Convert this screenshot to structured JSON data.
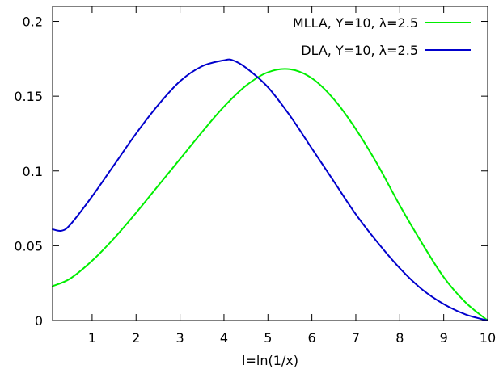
{
  "chart_data": {
    "type": "line",
    "title": "",
    "xlabel": "l=ln(1/x)",
    "ylabel": "",
    "xlim": [
      0.1,
      10
    ],
    "ylim": [
      0,
      0.21
    ],
    "xticks": [
      1,
      2,
      3,
      4,
      5,
      6,
      7,
      8,
      9,
      10
    ],
    "xtick_labels": [
      "1",
      "2",
      "3",
      "4",
      "5",
      "6",
      "7",
      "8",
      "9",
      "10"
    ],
    "yticks": [
      0,
      0.05,
      0.1,
      0.15,
      0.2
    ],
    "ytick_labels": [
      "0",
      "0.05",
      "0.1",
      "0.15",
      "0.2"
    ],
    "grid": false,
    "legend_position": "top-right",
    "series": [
      {
        "name": "MLLA, Y=10, λ=2.5",
        "color": "#00ee00",
        "x": [
          0.1,
          0.5,
          1.0,
          1.5,
          2.0,
          2.5,
          3.0,
          3.5,
          4.0,
          4.5,
          5.0,
          5.5,
          6.0,
          6.5,
          7.0,
          7.5,
          8.0,
          8.5,
          9.0,
          9.5,
          10.0
        ],
        "y": [
          0.023,
          0.028,
          0.04,
          0.055,
          0.072,
          0.09,
          0.108,
          0.126,
          0.143,
          0.157,
          0.166,
          0.168,
          0.162,
          0.148,
          0.128,
          0.104,
          0.077,
          0.052,
          0.029,
          0.012,
          0.0
        ]
      },
      {
        "name": "DLA, Y=10, λ=2.5",
        "color": "#0000cc",
        "x": [
          0.1,
          0.3,
          0.5,
          1.0,
          1.5,
          2.0,
          2.5,
          3.0,
          3.5,
          4.0,
          4.2,
          4.5,
          5.0,
          5.5,
          6.0,
          6.5,
          7.0,
          7.5,
          8.0,
          8.5,
          9.0,
          9.5,
          10.0
        ],
        "y": [
          0.061,
          0.06,
          0.064,
          0.083,
          0.104,
          0.125,
          0.144,
          0.16,
          0.17,
          0.174,
          0.174,
          0.169,
          0.156,
          0.137,
          0.115,
          0.093,
          0.071,
          0.052,
          0.035,
          0.021,
          0.011,
          0.004,
          0.0
        ]
      }
    ]
  }
}
